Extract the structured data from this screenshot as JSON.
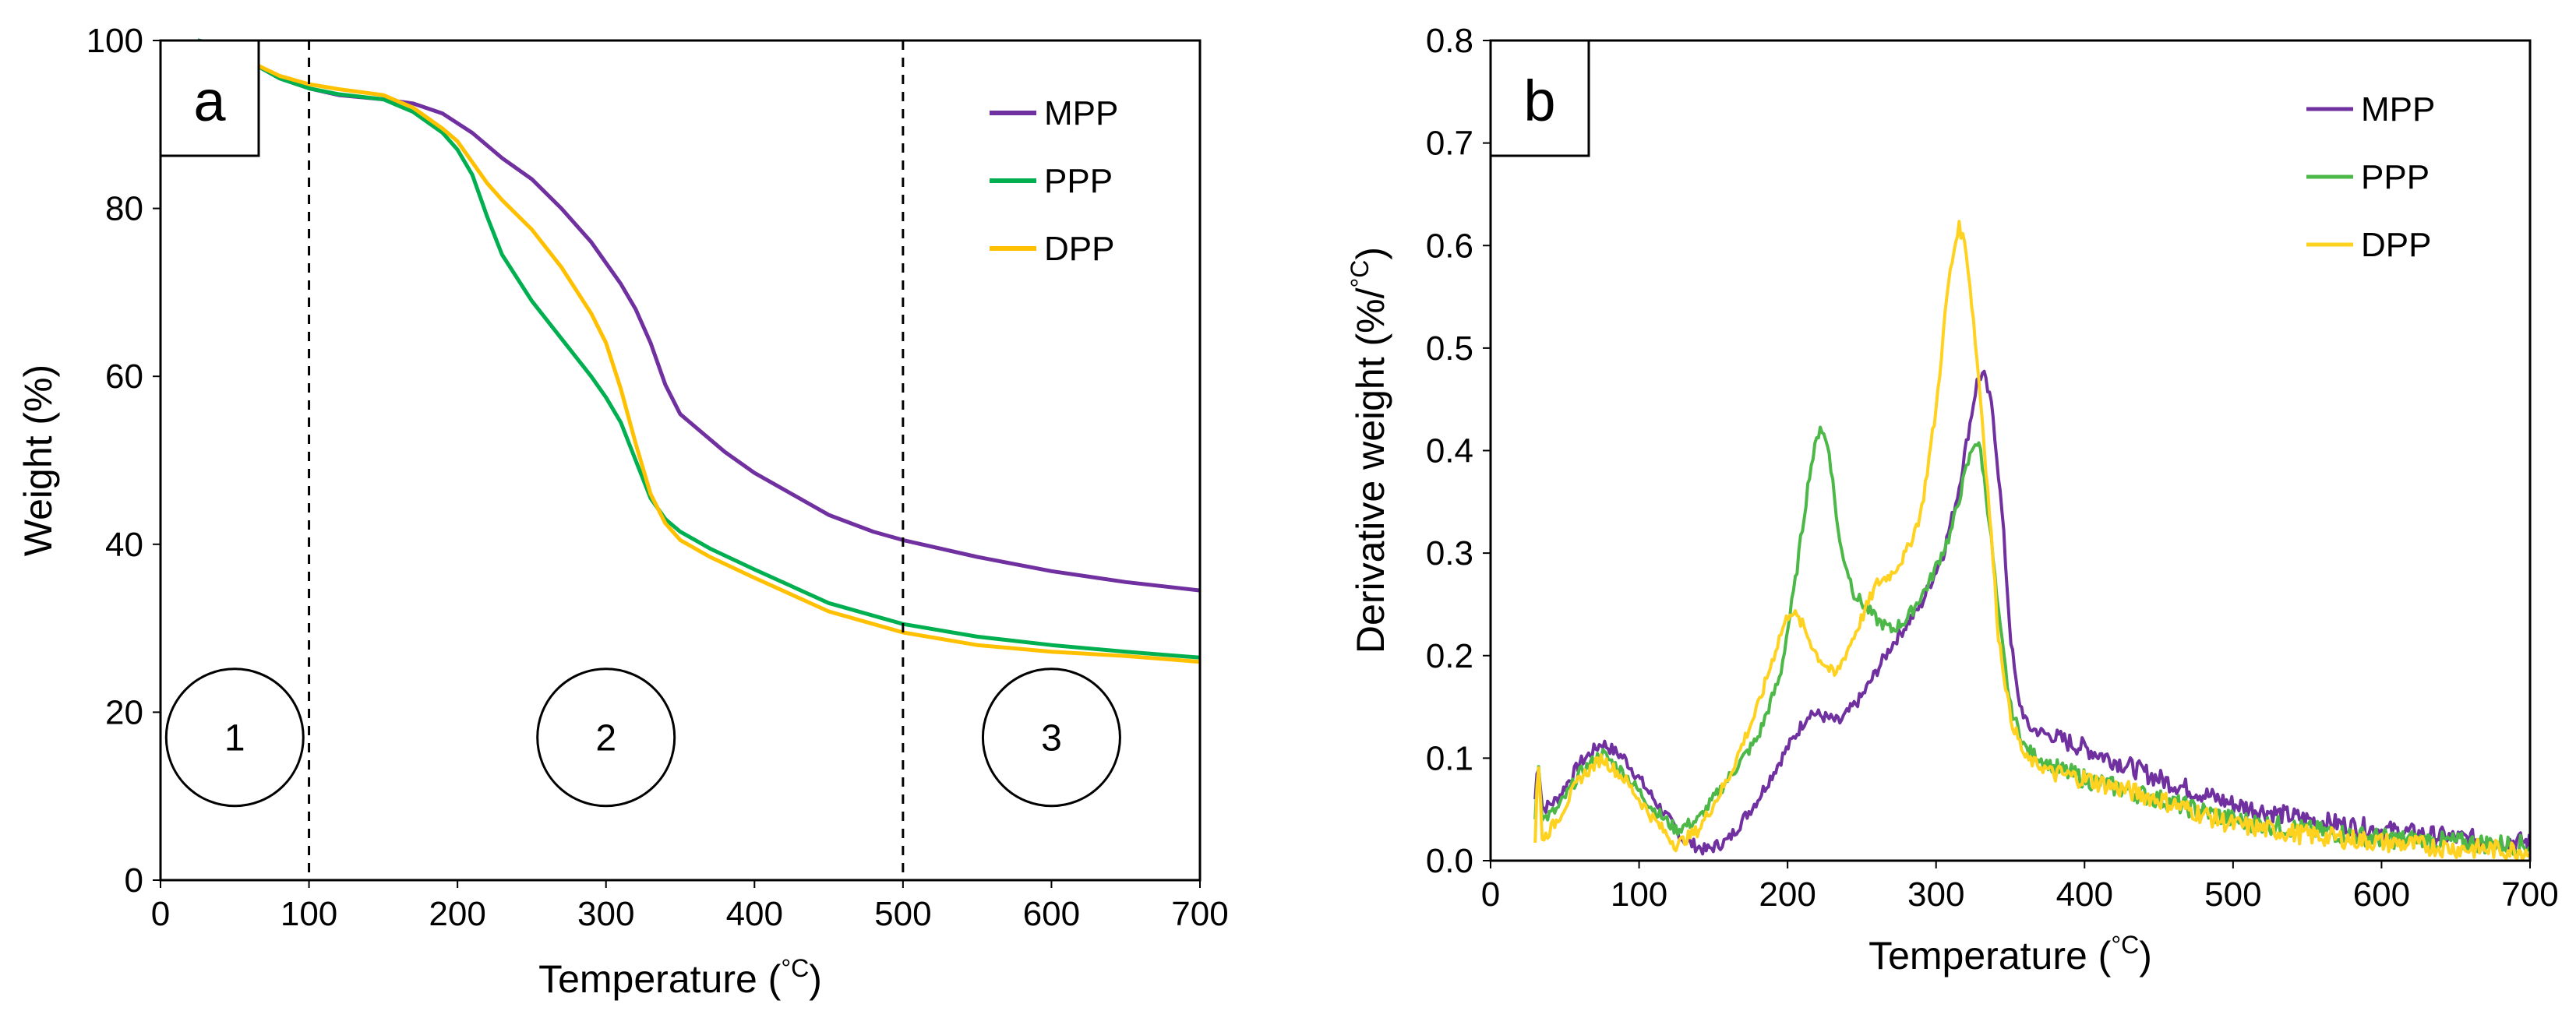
{
  "chart_data": [
    {
      "type": "line",
      "panel_label": "a",
      "xlabel": "Temperature (",
      "xlabel_unit": "°C",
      "ylabel": "Weight (%)",
      "xlim": [
        0,
        700
      ],
      "ylim": [
        0,
        100
      ],
      "xticks": [
        0,
        100,
        200,
        300,
        400,
        500,
        600,
        700
      ],
      "yticks": [
        0,
        20,
        40,
        60,
        80,
        100
      ],
      "grid": false,
      "legend_position": "top-right",
      "vlines": [
        100,
        500
      ],
      "regions": [
        {
          "label": "1",
          "x": 50,
          "y": 17
        },
        {
          "label": "2",
          "x": 300,
          "y": 17
        },
        {
          "label": "3",
          "x": 600,
          "y": 17
        }
      ],
      "series": [
        {
          "name": "MPP",
          "color": "#7030A0",
          "x": [
            25,
            40,
            60,
            80,
            100,
            120,
            150,
            170,
            190,
            210,
            230,
            250,
            270,
            290,
            310,
            320,
            330,
            340,
            350,
            360,
            380,
            400,
            420,
            450,
            480,
            500,
            550,
            600,
            650,
            700
          ],
          "y": [
            100,
            99.5,
            97.5,
            95.5,
            94.3,
            93.5,
            93,
            92.5,
            91.3,
            89,
            86,
            83.5,
            80,
            76,
            71,
            68,
            64,
            59,
            55.5,
            54,
            51,
            48.5,
            46.5,
            43.5,
            41.5,
            40.5,
            38.5,
            36.8,
            35.5,
            34.5
          ]
        },
        {
          "name": "PPP",
          "color": "#00B050",
          "x": [
            25,
            40,
            60,
            80,
            100,
            120,
            150,
            170,
            190,
            200,
            210,
            220,
            230,
            250,
            270,
            290,
            300,
            310,
            320,
            330,
            340,
            350,
            370,
            400,
            450,
            500,
            550,
            600,
            650,
            700
          ],
          "y": [
            100,
            99.5,
            97.5,
            95.5,
            94.3,
            93.6,
            93,
            91.5,
            89,
            87,
            84,
            79,
            74.5,
            69,
            64.5,
            60,
            57.5,
            54.5,
            50,
            45.5,
            43,
            41.5,
            39.5,
            37,
            33,
            30.5,
            29,
            28,
            27.2,
            26.5
          ]
        },
        {
          "name": "DPP",
          "color": "#FFC000",
          "x": [
            25,
            40,
            60,
            80,
            100,
            120,
            150,
            170,
            190,
            200,
            210,
            220,
            230,
            250,
            270,
            290,
            300,
            310,
            320,
            330,
            340,
            350,
            370,
            400,
            450,
            500,
            550,
            600,
            650,
            700
          ],
          "y": [
            99.5,
            99,
            97.5,
            95.8,
            94.8,
            94.2,
            93.5,
            92,
            89.5,
            88,
            85.5,
            83,
            81,
            77.5,
            73,
            67.5,
            64,
            58.5,
            52,
            46,
            42.5,
            40.5,
            38.5,
            36,
            32,
            29.5,
            28,
            27.2,
            26.7,
            26
          ]
        }
      ]
    },
    {
      "type": "line",
      "panel_label": "b",
      "xlabel": "Temperature (",
      "xlabel_unit": "°C",
      "ylabel": "Derivative weight (%/",
      "ylabel_unit": "°C",
      "xlim": [
        0,
        700
      ],
      "ylim": [
        0,
        0.8
      ],
      "xticks": [
        0,
        100,
        200,
        300,
        400,
        500,
        600,
        700
      ],
      "yticks": [
        0.0,
        0.1,
        0.2,
        0.3,
        0.4,
        0.5,
        0.6,
        0.7,
        0.8
      ],
      "ytick_labels": [
        "0.0",
        "0.1",
        "0.2",
        "0.3",
        "0.4",
        "0.5",
        "0.6",
        "0.7",
        "0.8"
      ],
      "grid": false,
      "legend_position": "top-right",
      "series": [
        {
          "name": "MPP",
          "color": "#7030A0",
          "noise": 0.006,
          "x": [
            30,
            32,
            35,
            45,
            60,
            75,
            90,
            110,
            130,
            145,
            160,
            180,
            200,
            215,
            225,
            235,
            250,
            270,
            290,
            305,
            315,
            322,
            328,
            332,
            338,
            345,
            350,
            355,
            362,
            380,
            400,
            450,
            500,
            550,
            600,
            650,
            700
          ],
          "y": [
            0.06,
            0.1,
            0.05,
            0.06,
            0.095,
            0.115,
            0.1,
            0.06,
            0.02,
            0.01,
            0.02,
            0.06,
            0.11,
            0.145,
            0.14,
            0.135,
            0.16,
            0.21,
            0.25,
            0.3,
            0.36,
            0.42,
            0.47,
            0.475,
            0.44,
            0.33,
            0.22,
            0.16,
            0.13,
            0.12,
            0.11,
            0.08,
            0.055,
            0.04,
            0.03,
            0.022,
            0.018
          ]
        },
        {
          "name": "PPP",
          "color": "#4CB848",
          "noise": 0.006,
          "x": [
            30,
            32,
            35,
            45,
            60,
            75,
            90,
            110,
            125,
            140,
            160,
            180,
            195,
            205,
            215,
            222,
            228,
            235,
            245,
            260,
            270,
            280,
            295,
            310,
            320,
            326,
            330,
            336,
            342,
            350,
            360,
            380,
            400,
            450,
            500,
            550,
            600,
            650,
            700
          ],
          "y": [
            0.04,
            0.1,
            0.04,
            0.05,
            0.085,
            0.105,
            0.085,
            0.05,
            0.03,
            0.04,
            0.08,
            0.12,
            0.18,
            0.27,
            0.38,
            0.425,
            0.4,
            0.31,
            0.26,
            0.235,
            0.225,
            0.235,
            0.27,
            0.32,
            0.38,
            0.41,
            0.4,
            0.33,
            0.24,
            0.15,
            0.11,
            0.09,
            0.08,
            0.06,
            0.04,
            0.03,
            0.022,
            0.018,
            0.015
          ]
        },
        {
          "name": "DPP",
          "color": "#FFD21F",
          "noise": 0.006,
          "x": [
            30,
            32,
            35,
            45,
            60,
            75,
            90,
            110,
            125,
            140,
            160,
            180,
            195,
            202,
            210,
            220,
            232,
            245,
            260,
            270,
            280,
            290,
            300,
            308,
            315,
            320,
            325,
            330,
            336,
            342,
            350,
            360,
            380,
            400,
            450,
            500,
            550,
            600,
            650,
            700
          ],
          "y": [
            0.02,
            0.1,
            0.02,
            0.04,
            0.08,
            0.1,
            0.08,
            0.04,
            0.015,
            0.03,
            0.08,
            0.15,
            0.22,
            0.245,
            0.23,
            0.2,
            0.18,
            0.22,
            0.27,
            0.28,
            0.3,
            0.34,
            0.44,
            0.56,
            0.62,
            0.6,
            0.53,
            0.45,
            0.34,
            0.22,
            0.14,
            0.1,
            0.085,
            0.08,
            0.06,
            0.035,
            0.025,
            0.018,
            0.012,
            0.01
          ]
        }
      ]
    }
  ]
}
